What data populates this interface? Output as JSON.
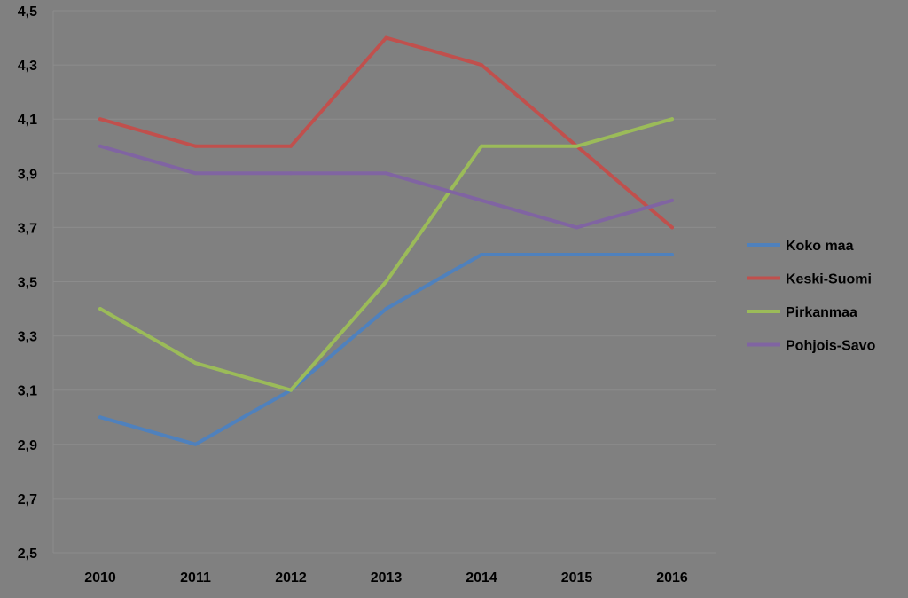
{
  "chart_data": {
    "type": "line",
    "title": "",
    "xlabel": "",
    "ylabel": "",
    "categories": [
      "2010",
      "2011",
      "2012",
      "2013",
      "2014",
      "2015",
      "2016"
    ],
    "ylim": [
      2.5,
      4.5
    ],
    "yticks": [
      "2,5",
      "2,7",
      "2,9",
      "3,1",
      "3,3",
      "3,5",
      "3,7",
      "3,9",
      "4,1",
      "4,3",
      "4,5"
    ],
    "grid": true,
    "legend_position": "right",
    "series": [
      {
        "name": "Koko maa",
        "color": "#4F81BD",
        "values": [
          3.0,
          2.9,
          3.1,
          3.4,
          3.6,
          3.6,
          3.6
        ]
      },
      {
        "name": "Keski-Suomi",
        "color": "#C0504D",
        "values": [
          4.1,
          4.0,
          4.0,
          4.4,
          4.3,
          4.0,
          3.7
        ]
      },
      {
        "name": "Pirkanmaa",
        "color": "#9BBB59",
        "values": [
          3.4,
          3.2,
          3.1,
          3.5,
          4.0,
          4.0,
          4.1
        ]
      },
      {
        "name": "Pohjois-Savo",
        "color": "#8064A2",
        "values": [
          4.0,
          3.9,
          3.9,
          3.9,
          3.8,
          3.7,
          3.8
        ]
      }
    ]
  }
}
